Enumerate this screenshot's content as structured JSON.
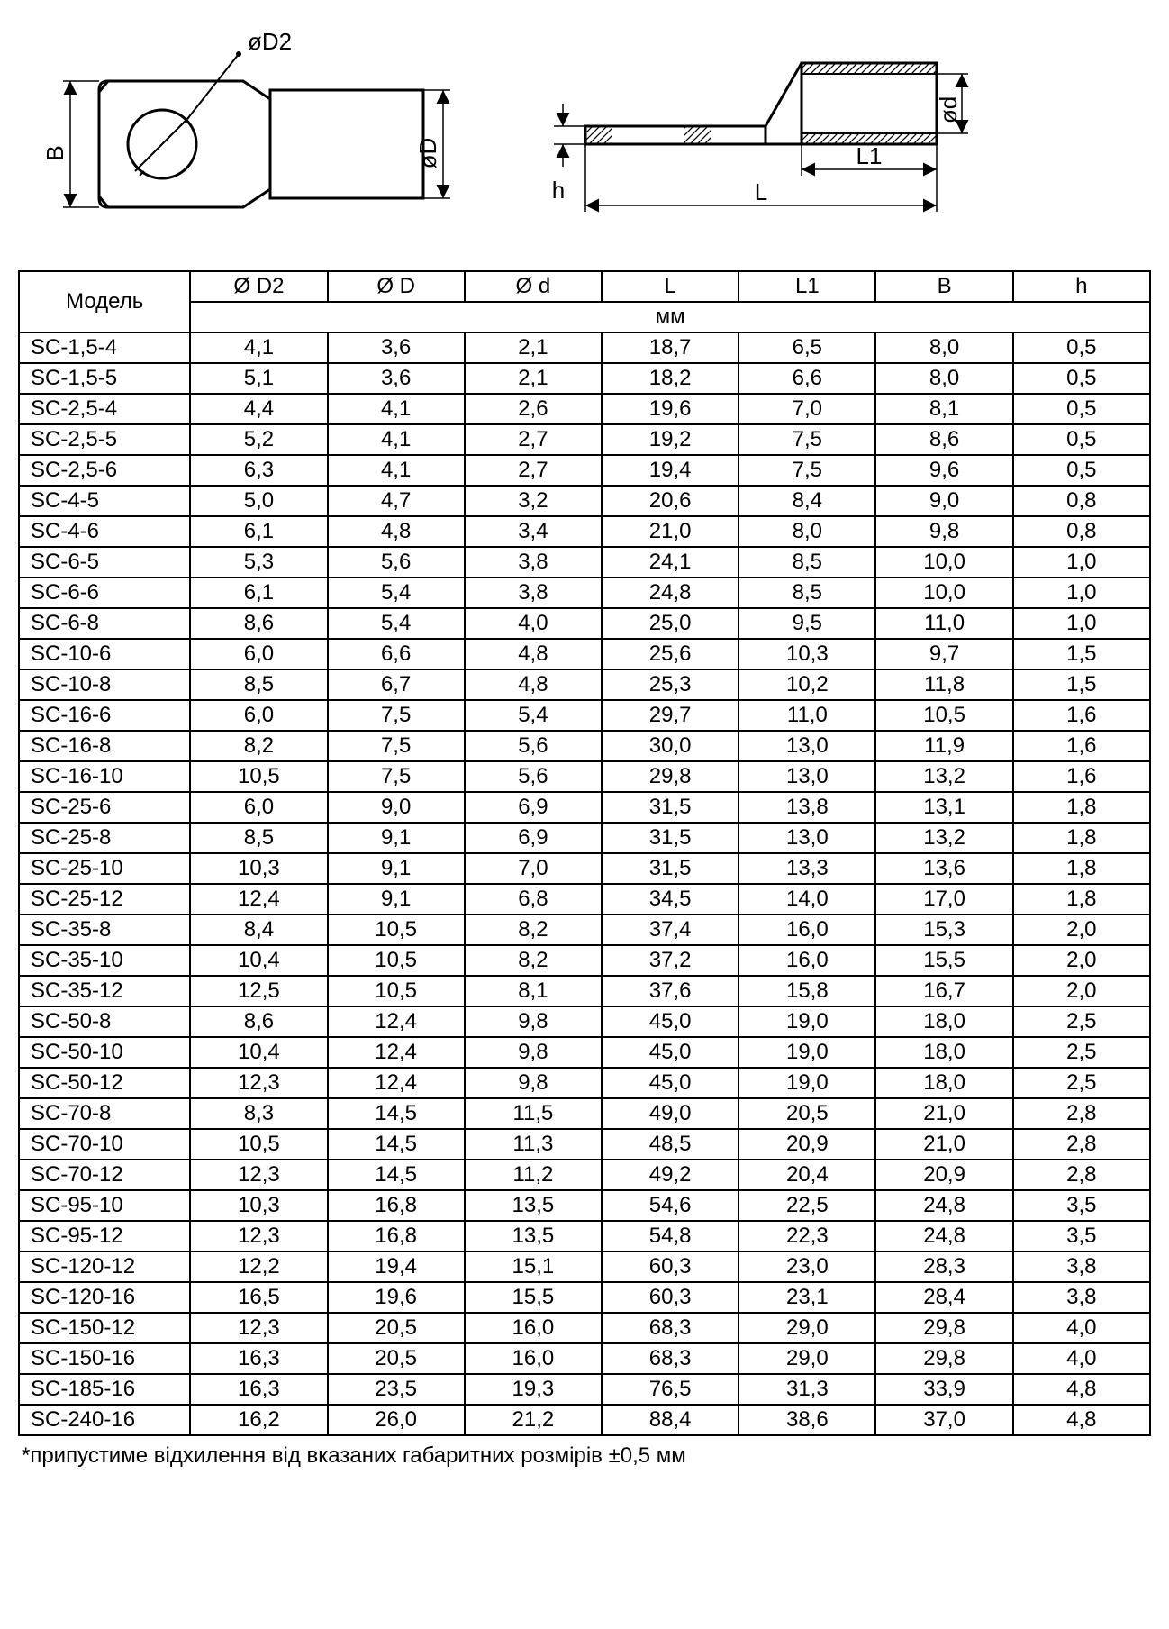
{
  "diagram_labels": {
    "D2": "øD2",
    "D": "øD",
    "d": "ød",
    "B": "B",
    "L": "L",
    "L1": "L1",
    "h": "h"
  },
  "diagram_style": {
    "stroke": "#000000",
    "stroke_bold": 3,
    "stroke_thin": 1.5,
    "hatch": "#000000",
    "font_size": 26,
    "font_family": "Arial"
  },
  "table": {
    "header_model": "Модель",
    "header_unit": "мм",
    "columns": [
      "Ø D2",
      "Ø D",
      "Ø d",
      "L",
      "L1",
      "B",
      "h"
    ],
    "rows": [
      [
        "SC-1,5-4",
        "4,1",
        "3,6",
        "2,1",
        "18,7",
        "6,5",
        "8,0",
        "0,5"
      ],
      [
        "SC-1,5-5",
        "5,1",
        "3,6",
        "2,1",
        "18,2",
        "6,6",
        "8,0",
        "0,5"
      ],
      [
        "SC-2,5-4",
        "4,4",
        "4,1",
        "2,6",
        "19,6",
        "7,0",
        "8,1",
        "0,5"
      ],
      [
        "SC-2,5-5",
        "5,2",
        "4,1",
        "2,7",
        "19,2",
        "7,5",
        "8,6",
        "0,5"
      ],
      [
        "SC-2,5-6",
        "6,3",
        "4,1",
        "2,7",
        "19,4",
        "7,5",
        "9,6",
        "0,5"
      ],
      [
        "SC-4-5",
        "5,0",
        "4,7",
        "3,2",
        "20,6",
        "8,4",
        "9,0",
        "0,8"
      ],
      [
        "SC-4-6",
        "6,1",
        "4,8",
        "3,4",
        "21,0",
        "8,0",
        "9,8",
        "0,8"
      ],
      [
        "SC-6-5",
        "5,3",
        "5,6",
        "3,8",
        "24,1",
        "8,5",
        "10,0",
        "1,0"
      ],
      [
        "SC-6-6",
        "6,1",
        "5,4",
        "3,8",
        "24,8",
        "8,5",
        "10,0",
        "1,0"
      ],
      [
        "SC-6-8",
        "8,6",
        "5,4",
        "4,0",
        "25,0",
        "9,5",
        "11,0",
        "1,0"
      ],
      [
        "SC-10-6",
        "6,0",
        "6,6",
        "4,8",
        "25,6",
        "10,3",
        "9,7",
        "1,5"
      ],
      [
        "SC-10-8",
        "8,5",
        "6,7",
        "4,8",
        "25,3",
        "10,2",
        "11,8",
        "1,5"
      ],
      [
        "SC-16-6",
        "6,0",
        "7,5",
        "5,4",
        "29,7",
        "11,0",
        "10,5",
        "1,6"
      ],
      [
        "SC-16-8",
        "8,2",
        "7,5",
        "5,6",
        "30,0",
        "13,0",
        "11,9",
        "1,6"
      ],
      [
        "SC-16-10",
        "10,5",
        "7,5",
        "5,6",
        "29,8",
        "13,0",
        "13,2",
        "1,6"
      ],
      [
        "SC-25-6",
        "6,0",
        "9,0",
        "6,9",
        "31,5",
        "13,8",
        "13,1",
        "1,8"
      ],
      [
        "SC-25-8",
        "8,5",
        "9,1",
        "6,9",
        "31,5",
        "13,0",
        "13,2",
        "1,8"
      ],
      [
        "SC-25-10",
        "10,3",
        "9,1",
        "7,0",
        "31,5",
        "13,3",
        "13,6",
        "1,8"
      ],
      [
        "SC-25-12",
        "12,4",
        "9,1",
        "6,8",
        "34,5",
        "14,0",
        "17,0",
        "1,8"
      ],
      [
        "SC-35-8",
        "8,4",
        "10,5",
        "8,2",
        "37,4",
        "16,0",
        "15,3",
        "2,0"
      ],
      [
        "SC-35-10",
        "10,4",
        "10,5",
        "8,2",
        "37,2",
        "16,0",
        "15,5",
        "2,0"
      ],
      [
        "SC-35-12",
        "12,5",
        "10,5",
        "8,1",
        "37,6",
        "15,8",
        "16,7",
        "2,0"
      ],
      [
        "SC-50-8",
        "8,6",
        "12,4",
        "9,8",
        "45,0",
        "19,0",
        "18,0",
        "2,5"
      ],
      [
        "SC-50-10",
        "10,4",
        "12,4",
        "9,8",
        "45,0",
        "19,0",
        "18,0",
        "2,5"
      ],
      [
        "SC-50-12",
        "12,3",
        "12,4",
        "9,8",
        "45,0",
        "19,0",
        "18,0",
        "2,5"
      ],
      [
        "SC-70-8",
        "8,3",
        "14,5",
        "11,5",
        "49,0",
        "20,5",
        "21,0",
        "2,8"
      ],
      [
        "SC-70-10",
        "10,5",
        "14,5",
        "11,3",
        "48,5",
        "20,9",
        "21,0",
        "2,8"
      ],
      [
        "SC-70-12",
        "12,3",
        "14,5",
        "11,2",
        "49,2",
        "20,4",
        "20,9",
        "2,8"
      ],
      [
        "SC-95-10",
        "10,3",
        "16,8",
        "13,5",
        "54,6",
        "22,5",
        "24,8",
        "3,5"
      ],
      [
        "SC-95-12",
        "12,3",
        "16,8",
        "13,5",
        "54,8",
        "22,3",
        "24,8",
        "3,5"
      ],
      [
        "SC-120-12",
        "12,2",
        "19,4",
        "15,1",
        "60,3",
        "23,0",
        "28,3",
        "3,8"
      ],
      [
        "SC-120-16",
        "16,5",
        "19,6",
        "15,5",
        "60,3",
        "23,1",
        "28,4",
        "3,8"
      ],
      [
        "SC-150-12",
        "12,3",
        "20,5",
        "16,0",
        "68,3",
        "29,0",
        "29,8",
        "4,0"
      ],
      [
        "SC-150-16",
        "16,3",
        "20,5",
        "16,0",
        "68,3",
        "29,0",
        "29,8",
        "4,0"
      ],
      [
        "SC-185-16",
        "16,3",
        "23,5",
        "19,3",
        "76,5",
        "31,3",
        "33,9",
        "4,8"
      ],
      [
        "SC-240-16",
        "16,2",
        "26,0",
        "21,2",
        "88,4",
        "38,6",
        "37,0",
        "4,8"
      ]
    ]
  },
  "footnote": "*припустиме відхилення від вказаних габаритних розмірів ±0,5 мм"
}
